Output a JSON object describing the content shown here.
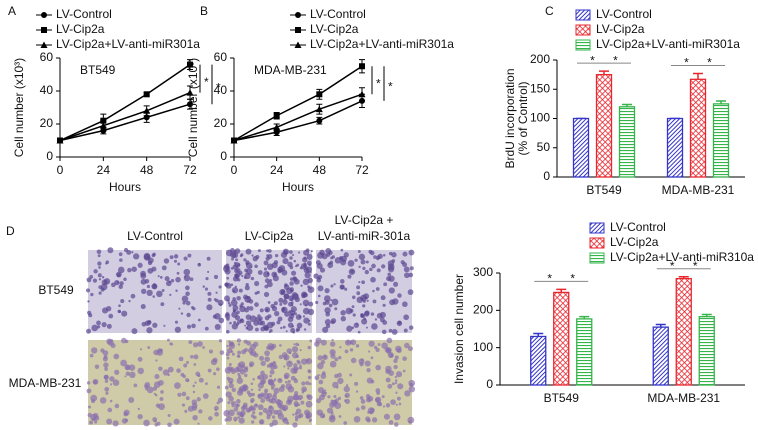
{
  "chart_data": [
    {
      "type": "line",
      "panel": "A",
      "annotation": "BT549",
      "ylabel": [
        "Cell number (x10³)"
      ],
      "xlabel": "Hours",
      "x": [
        0,
        24,
        48,
        72
      ],
      "xlim": [
        0,
        72
      ],
      "xticks": [
        0,
        24,
        48,
        72
      ],
      "ylim": [
        0,
        60
      ],
      "yticks": [
        0,
        20,
        40,
        60
      ],
      "grid": false,
      "series": [
        {
          "name": "LV-Control",
          "color": "#000000",
          "values": [
            10,
            16,
            24,
            32
          ],
          "errors": [
            1,
            2,
            3,
            3
          ]
        },
        {
          "name": "LV-Cip2a",
          "color": "#000000",
          "values": [
            10,
            22,
            38,
            56
          ],
          "errors": [
            1,
            4,
            1,
            3
          ]
        },
        {
          "name": "LV-Cip2a+LV-anti-miR301a",
          "color": "#000000",
          "values": [
            10,
            19,
            28,
            39
          ],
          "errors": [
            1,
            3,
            3,
            4
          ]
        }
      ],
      "annotations": [
        "*",
        "*"
      ]
    },
    {
      "type": "line",
      "panel": "B",
      "annotation": "MDA-MB-231",
      "ylabel": [
        "Cell number (x10³)"
      ],
      "xlabel": "Hours",
      "x": [
        0,
        24,
        48,
        72
      ],
      "xlim": [
        0,
        72
      ],
      "xticks": [
        0,
        24,
        48,
        72
      ],
      "ylim": [
        0,
        60
      ],
      "yticks": [
        0,
        20,
        40,
        60
      ],
      "grid": false,
      "series": [
        {
          "name": "LV-Control",
          "color": "#000000",
          "values": [
            10,
            15,
            22,
            34
          ],
          "errors": [
            1,
            2,
            2,
            4
          ]
        },
        {
          "name": "LV-Cip2a",
          "color": "#000000",
          "values": [
            10,
            25,
            38,
            55
          ],
          "errors": [
            1,
            2,
            3,
            4
          ]
        },
        {
          "name": "LV-Cip2a+LV-anti-miR301a",
          "color": "#000000",
          "values": [
            10,
            18,
            29,
            38
          ],
          "errors": [
            1,
            2,
            3,
            4
          ]
        }
      ],
      "annotations": [
        "*",
        "*"
      ]
    },
    {
      "type": "bar",
      "panel": "C",
      "ylabel": [
        "BrdU incorporation",
        "(% of Control)"
      ],
      "categories": [
        "BT549",
        "MDA-MB-231"
      ],
      "ylim": [
        0,
        200
      ],
      "yticks": [
        0,
        50,
        100,
        150,
        200
      ],
      "grid": false,
      "series": [
        {
          "name": "LV-Control",
          "color": "#3434c8",
          "values": [
            100,
            100
          ],
          "errors": [
            0,
            0
          ]
        },
        {
          "name": "LV-Cip2a",
          "color": "#e8262e",
          "values": [
            175,
            167
          ],
          "errors": [
            6,
            10
          ]
        },
        {
          "name": "LV-Cip2a+LV-anti-miR301a",
          "color": "#35b44a",
          "values": [
            120,
            125
          ],
          "errors": [
            4,
            5
          ]
        }
      ],
      "annotations": [
        "*",
        "*",
        "*",
        "*"
      ]
    },
    {
      "type": "bar",
      "ylabel": [
        "Invasion cell number"
      ],
      "categories": [
        "BT549",
        "MDA-MB-231"
      ],
      "ylim": [
        0,
        300
      ],
      "yticks": [
        0,
        100,
        200,
        300
      ],
      "grid": false,
      "series": [
        {
          "name": "LV-Control",
          "color": "#3434c8",
          "values": [
            130,
            155
          ],
          "errors": [
            8,
            7
          ]
        },
        {
          "name": "LV-Cip2a",
          "color": "#e8262e",
          "values": [
            248,
            285
          ],
          "errors": [
            8,
            5
          ]
        },
        {
          "name": "LV-Cip2a+LV-anti-miR310a",
          "color": "#35b44a",
          "values": [
            177,
            183
          ],
          "errors": [
            6,
            6
          ]
        }
      ],
      "annotations": [
        "*",
        "*",
        "*",
        "*"
      ]
    }
  ],
  "images": {
    "panel": "D",
    "columns": [
      "LV-Control",
      "LV-Cip2a",
      "LV-Cip2a +",
      "LV-anti-miR-301a"
    ],
    "rows": [
      "BT549",
      "MDA-MB-231"
    ]
  }
}
